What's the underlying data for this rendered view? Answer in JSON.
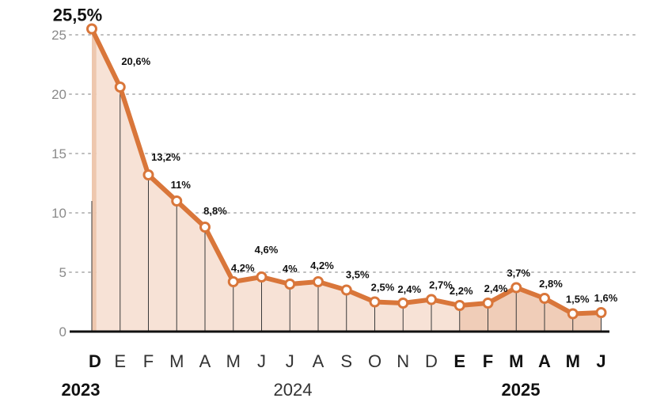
{
  "chart_data": {
    "type": "area",
    "title": "",
    "xlabel": "",
    "ylabel": "",
    "ylim": [
      0,
      25
    ],
    "yticks": [
      "0",
      "5",
      "10",
      "15",
      "20",
      "25"
    ],
    "grid": true,
    "categories": [
      "D",
      "E",
      "F",
      "M",
      "A",
      "M",
      "J",
      "J",
      "A",
      "S",
      "O",
      "N",
      "D",
      "E",
      "F",
      "M",
      "A",
      "M",
      "J"
    ],
    "bold_categories": [
      0,
      13,
      14,
      15,
      16,
      17,
      18
    ],
    "values": [
      25.5,
      20.6,
      13.2,
      11,
      8.8,
      4.2,
      4.6,
      4,
      4.2,
      3.5,
      2.5,
      2.4,
      2.7,
      2.2,
      2.4,
      3.7,
      2.8,
      1.5,
      1.6
    ],
    "data_labels": [
      "25,5%",
      "20,6%",
      "13,2%",
      "11%",
      "8,8%",
      "4,2%",
      "4,6%",
      "4%",
      "4,2%",
      "3,5%",
      "2,5%",
      "2,4%",
      "2,7%",
      "2,2%",
      "2,4%",
      "3,7%",
      "2,8%",
      "1,5%",
      "1,6%"
    ],
    "years": [
      {
        "label": "2023",
        "bold": true
      },
      {
        "label": "2024",
        "bold": false
      },
      {
        "label": "2025",
        "bold": true
      }
    ],
    "colors": {
      "line": "#D9763A",
      "fill_2023": "#EEC7AE",
      "fill_2024": "#F7E2D6",
      "fill_2025": "#F0CDB8",
      "grid": "#BDBDBD",
      "axis": "#111111",
      "tick_text": "#8A8A8A"
    }
  }
}
